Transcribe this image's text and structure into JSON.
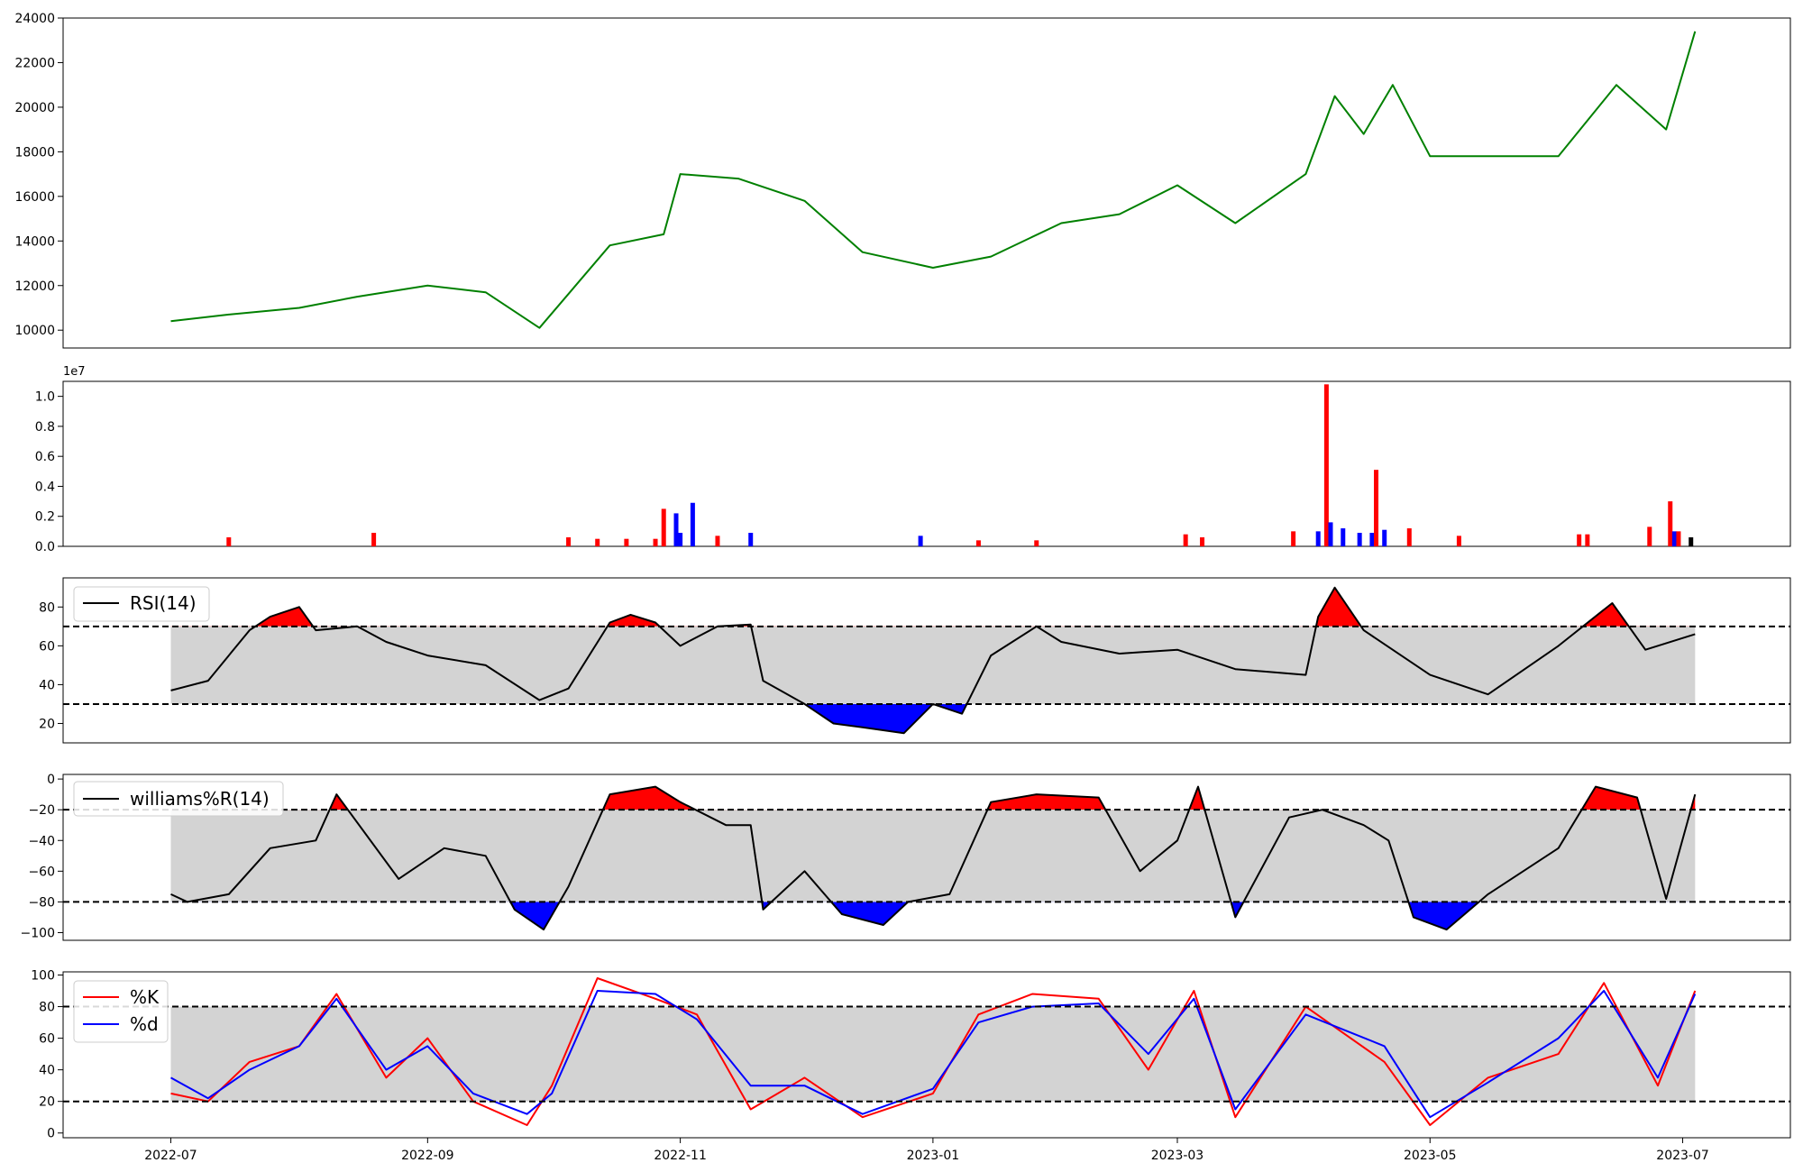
{
  "chart_data": [
    {
      "type": "line",
      "panel": "price",
      "ylim": [
        9200,
        24000
      ],
      "yticks": [
        10000,
        12000,
        14000,
        16000,
        18000,
        20000,
        22000,
        24000
      ],
      "ytick_labels": [
        "10000",
        "12000",
        "14000",
        "16000",
        "18000",
        "20000",
        "22000",
        "24000"
      ],
      "line_color": "#008000",
      "x": [
        "2022-07-01",
        "2022-07-15",
        "2022-08-01",
        "2022-08-15",
        "2022-09-01",
        "2022-09-15",
        "2022-09-28",
        "2022-10-15",
        "2022-10-28",
        "2022-11-01",
        "2022-11-15",
        "2022-12-01",
        "2022-12-15",
        "2023-01-01",
        "2023-01-15",
        "2023-02-01",
        "2023-02-15",
        "2023-03-01",
        "2023-03-15",
        "2023-04-01",
        "2023-04-08",
        "2023-04-15",
        "2023-04-22",
        "2023-05-01",
        "2023-05-15",
        "2023-06-01",
        "2023-06-15",
        "2023-06-27",
        "2023-07-04"
      ],
      "y": [
        10400,
        10700,
        11000,
        11500,
        12000,
        11700,
        10100,
        13800,
        14300,
        17000,
        16800,
        15800,
        13500,
        12800,
        13300,
        14800,
        15200,
        16500,
        14800,
        17000,
        20500,
        18800,
        21000,
        17800,
        17800,
        17800,
        21000,
        19000,
        23400
      ]
    },
    {
      "type": "bar",
      "panel": "volume",
      "ylim": [
        0,
        1.1
      ],
      "yticks": [
        0.0,
        0.2,
        0.4,
        0.6,
        0.8,
        1.0
      ],
      "ytick_labels": [
        "0.0",
        "0.2",
        "0.4",
        "0.6",
        "0.8",
        "1.0"
      ],
      "offset_label": "1e7",
      "colors": {
        "up": "#ff0000",
        "down": "#0000ff",
        "last": "#000000"
      },
      "x": [
        "2022-07-15",
        "2022-08-19",
        "2022-10-05",
        "2022-10-12",
        "2022-10-19",
        "2022-10-26",
        "2022-10-28",
        "2022-10-31",
        "2022-11-01",
        "2022-11-04",
        "2022-11-10",
        "2022-11-18",
        "2022-12-29",
        "2023-01-12",
        "2023-01-26",
        "2023-03-03",
        "2023-03-07",
        "2023-03-29",
        "2023-04-04",
        "2023-04-06",
        "2023-04-07",
        "2023-04-10",
        "2023-04-14",
        "2023-04-17",
        "2023-04-18",
        "2023-04-20",
        "2023-04-26",
        "2023-05-08",
        "2023-06-06",
        "2023-06-08",
        "2023-06-23",
        "2023-06-28",
        "2023-06-29",
        "2023-06-30",
        "2023-07-03"
      ],
      "y": [
        0.06,
        0.09,
        0.06,
        0.05,
        0.05,
        0.05,
        0.25,
        0.22,
        0.09,
        0.29,
        0.07,
        0.09,
        0.07,
        0.04,
        0.04,
        0.08,
        0.06,
        0.1,
        0.1,
        1.08,
        0.16,
        0.12,
        0.09,
        0.09,
        0.51,
        0.11,
        0.12,
        0.07,
        0.08,
        0.08,
        0.13,
        0.3,
        0.1,
        0.1,
        0.06
      ],
      "direction": [
        "up",
        "up",
        "up",
        "up",
        "up",
        "up",
        "up",
        "down",
        "down",
        "down",
        "up",
        "down",
        "down",
        "up",
        "up",
        "up",
        "up",
        "up",
        "down",
        "up",
        "down",
        "down",
        "down",
        "down",
        "up",
        "down",
        "up",
        "up",
        "up",
        "up",
        "up",
        "up",
        "down",
        "up",
        "last"
      ]
    },
    {
      "type": "line",
      "panel": "rsi",
      "legend": [
        "RSI(14)"
      ],
      "ylim": [
        10,
        95
      ],
      "yticks": [
        20,
        40,
        60,
        80
      ],
      "ytick_labels": [
        "20",
        "40",
        "60",
        "80"
      ],
      "thresholds": [
        30,
        70
      ],
      "colors": {
        "line": "#000000",
        "band": "#d3d3d3",
        "over": "#ff0000",
        "under": "#0000ff"
      },
      "x": [
        "2022-07-01",
        "2022-07-10",
        "2022-07-20",
        "2022-07-25",
        "2022-08-01",
        "2022-08-05",
        "2022-08-15",
        "2022-08-22",
        "2022-09-01",
        "2022-09-15",
        "2022-09-28",
        "2022-10-05",
        "2022-10-15",
        "2022-10-20",
        "2022-10-26",
        "2022-11-01",
        "2022-11-10",
        "2022-11-18",
        "2022-11-21",
        "2022-12-01",
        "2022-12-08",
        "2022-12-15",
        "2022-12-25",
        "2023-01-01",
        "2023-01-08",
        "2023-01-15",
        "2023-01-26",
        "2023-02-01",
        "2023-02-15",
        "2023-03-01",
        "2023-03-15",
        "2023-04-01",
        "2023-04-04",
        "2023-04-08",
        "2023-04-15",
        "2023-05-01",
        "2023-05-15",
        "2023-06-01",
        "2023-06-14",
        "2023-06-22",
        "2023-07-04"
      ],
      "y": [
        37,
        42,
        68,
        75,
        80,
        68,
        70,
        62,
        55,
        50,
        32,
        38,
        72,
        76,
        72,
        60,
        70,
        71,
        42,
        30,
        20,
        18,
        15,
        30,
        25,
        55,
        70,
        62,
        56,
        58,
        48,
        45,
        75,
        90,
        68,
        45,
        35,
        60,
        82,
        58,
        66
      ]
    },
    {
      "type": "line",
      "panel": "williams",
      "legend": [
        "williams%R(14)"
      ],
      "ylim": [
        -105,
        3
      ],
      "yticks": [
        -100,
        -80,
        -60,
        -40,
        -20,
        0
      ],
      "ytick_labels": [
        "−100",
        "−80",
        "−60",
        "−40",
        "−20",
        "0"
      ],
      "thresholds": [
        -80,
        -20
      ],
      "colors": {
        "line": "#000000",
        "band": "#d3d3d3",
        "over": "#ff0000",
        "under": "#0000ff"
      },
      "x": [
        "2022-07-01",
        "2022-07-05",
        "2022-07-15",
        "2022-07-25",
        "2022-08-05",
        "2022-08-10",
        "2022-08-25",
        "2022-09-05",
        "2022-09-15",
        "2022-09-22",
        "2022-09-29",
        "2022-10-05",
        "2022-10-15",
        "2022-10-26",
        "2022-11-01",
        "2022-11-12",
        "2022-11-18",
        "2022-11-21",
        "2022-12-01",
        "2022-12-10",
        "2022-12-20",
        "2022-12-26",
        "2023-01-05",
        "2023-01-15",
        "2023-01-26",
        "2023-02-10",
        "2023-02-20",
        "2023-03-01",
        "2023-03-06",
        "2023-03-15",
        "2023-03-28",
        "2023-04-05",
        "2023-04-15",
        "2023-04-21",
        "2023-04-27",
        "2023-05-05",
        "2023-05-15",
        "2023-06-01",
        "2023-06-10",
        "2023-06-20",
        "2023-06-27",
        "2023-07-04"
      ],
      "y": [
        -75,
        -80,
        -75,
        -45,
        -40,
        -10,
        -65,
        -45,
        -50,
        -85,
        -98,
        -70,
        -10,
        -5,
        -15,
        -30,
        -30,
        -85,
        -60,
        -88,
        -95,
        -80,
        -75,
        -15,
        -10,
        -12,
        -60,
        -40,
        -5,
        -90,
        -25,
        -20,
        -30,
        -40,
        -90,
        -98,
        -75,
        -45,
        -5,
        -12,
        -78,
        -10
      ]
    },
    {
      "type": "line",
      "panel": "stochastic",
      "legend": [
        "%K",
        "%d"
      ],
      "ylim": [
        -3,
        102
      ],
      "yticks": [
        0,
        20,
        40,
        60,
        80,
        100
      ],
      "ytick_labels": [
        "0",
        "20",
        "40",
        "60",
        "80",
        "100"
      ],
      "thresholds": [
        20,
        80
      ],
      "colors": {
        "band": "#d3d3d3"
      },
      "x": [
        "2022-07-01",
        "2022-07-10",
        "2022-07-20",
        "2022-08-01",
        "2022-08-10",
        "2022-08-22",
        "2022-09-01",
        "2022-09-12",
        "2022-09-25",
        "2022-10-01",
        "2022-10-12",
        "2022-10-26",
        "2022-11-05",
        "2022-11-18",
        "2022-12-01",
        "2022-12-15",
        "2023-01-01",
        "2023-01-12",
        "2023-01-25",
        "2023-02-10",
        "2023-02-22",
        "2023-03-05",
        "2023-03-15",
        "2023-04-01",
        "2023-04-20",
        "2023-05-01",
        "2023-05-15",
        "2023-06-01",
        "2023-06-12",
        "2023-06-25",
        "2023-07-04"
      ],
      "series": [
        {
          "name": "%K",
          "color": "#ff0000",
          "values": [
            25,
            20,
            45,
            55,
            88,
            35,
            60,
            20,
            5,
            30,
            98,
            85,
            75,
            15,
            35,
            10,
            25,
            75,
            88,
            85,
            40,
            90,
            10,
            80,
            45,
            5,
            35,
            50,
            95,
            30,
            90
          ]
        },
        {
          "name": "%d",
          "color": "#0000ff",
          "values": [
            35,
            22,
            40,
            55,
            85,
            40,
            55,
            25,
            12,
            25,
            90,
            88,
            72,
            30,
            30,
            12,
            28,
            70,
            80,
            82,
            50,
            85,
            15,
            75,
            55,
            10,
            32,
            60,
            90,
            35,
            88
          ]
        }
      ]
    }
  ],
  "x_axis": {
    "domain": [
      "2022-06-05",
      "2023-07-27"
    ],
    "tick_labels": [
      "2022-07",
      "2022-09",
      "2022-11",
      "2023-01",
      "2023-03",
      "2023-05",
      "2023-07"
    ]
  }
}
